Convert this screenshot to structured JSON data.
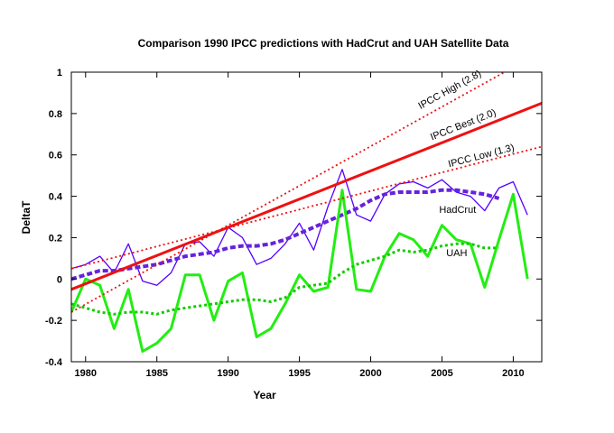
{
  "chart_data": {
    "type": "line",
    "title": "Comparison 1990 IPCC predictions with  HadCrut and UAH Satellite Data",
    "xlabel": "Year",
    "ylabel": "DeltaT",
    "xlim": [
      1979,
      2012
    ],
    "ylim": [
      -0.4,
      1.0
    ],
    "x_ticks": [
      1980,
      1985,
      1990,
      1995,
      2000,
      2005,
      2010
    ],
    "y_ticks": [
      -0.4,
      -0.2,
      0,
      0.2,
      0.4,
      0.6,
      0.8,
      1
    ],
    "y_tick_labels": [
      "-0.4",
      "-0.2",
      "0",
      "0.2",
      "0.4",
      "0.6",
      "0.8",
      "1"
    ],
    "grid": false,
    "colors": {
      "hadcrut": "#5500ff",
      "hadcrut_smooth": "#6622dd",
      "uah": "#22ee11",
      "uah_smooth": "#11cc00",
      "ipcc_best": "#ee1111",
      "ipcc_bounds": "#ee1111"
    },
    "series": [
      {
        "key": "hadcrut",
        "x": [
          1979,
          1980,
          1981,
          1982,
          1983,
          1984,
          1985,
          1986,
          1987,
          1988,
          1989,
          1990,
          1991,
          1992,
          1993,
          1994,
          1995,
          1996,
          1997,
          1998,
          1999,
          2000,
          2001,
          2002,
          2003,
          2004,
          2005,
          2006,
          2007,
          2008,
          2009,
          2010,
          2011
        ],
        "values": [
          0.05,
          0.07,
          0.11,
          0.03,
          0.17,
          -0.01,
          -0.03,
          0.03,
          0.17,
          0.18,
          0.11,
          0.25,
          0.2,
          0.07,
          0.1,
          0.17,
          0.27,
          0.14,
          0.35,
          0.53,
          0.31,
          0.28,
          0.41,
          0.46,
          0.47,
          0.44,
          0.48,
          0.42,
          0.4,
          0.33,
          0.44,
          0.47,
          0.31
        ]
      },
      {
        "key": "hadcrut_smooth",
        "x": [
          1979,
          1980,
          1981,
          1982,
          1983,
          1984,
          1985,
          1986,
          1987,
          1988,
          1989,
          1990,
          1991,
          1992,
          1993,
          1994,
          1995,
          1996,
          1997,
          1998,
          1999,
          2000,
          2001,
          2002,
          2003,
          2004,
          2005,
          2006,
          2007,
          2008,
          2009
        ],
        "values": [
          0.0,
          0.02,
          0.04,
          0.04,
          0.05,
          0.06,
          0.07,
          0.09,
          0.11,
          0.12,
          0.13,
          0.15,
          0.16,
          0.16,
          0.17,
          0.19,
          0.22,
          0.25,
          0.28,
          0.31,
          0.34,
          0.38,
          0.41,
          0.42,
          0.42,
          0.42,
          0.43,
          0.43,
          0.42,
          0.41,
          0.39
        ]
      },
      {
        "key": "uah",
        "x": [
          1979,
          1980,
          1981,
          1982,
          1983,
          1984,
          1985,
          1986,
          1987,
          1988,
          1989,
          1990,
          1991,
          1992,
          1993,
          1994,
          1995,
          1996,
          1997,
          1998,
          1999,
          2000,
          2001,
          2002,
          2003,
          2004,
          2005,
          2006,
          2007,
          2008,
          2009,
          2010,
          2011
        ],
        "values": [
          -0.16,
          0.0,
          -0.03,
          -0.24,
          -0.05,
          -0.35,
          -0.31,
          -0.24,
          0.02,
          0.02,
          -0.2,
          -0.01,
          0.03,
          -0.28,
          -0.24,
          -0.12,
          0.02,
          -0.06,
          -0.04,
          0.43,
          -0.05,
          -0.06,
          0.11,
          0.22,
          0.19,
          0.11,
          0.26,
          0.19,
          0.17,
          -0.04,
          0.19,
          0.41,
          0.0
        ]
      },
      {
        "key": "uah_smooth",
        "x": [
          1979,
          1980,
          1981,
          1982,
          1983,
          1984,
          1985,
          1986,
          1987,
          1988,
          1989,
          1990,
          1991,
          1992,
          1993,
          1994,
          1995,
          1996,
          1997,
          1998,
          1999,
          2000,
          2001,
          2002,
          2003,
          2004,
          2005,
          2006,
          2007,
          2008,
          2009
        ],
        "values": [
          -0.12,
          -0.14,
          -0.16,
          -0.17,
          -0.16,
          -0.16,
          -0.17,
          -0.15,
          -0.14,
          -0.13,
          -0.12,
          -0.11,
          -0.1,
          -0.1,
          -0.11,
          -0.09,
          -0.04,
          -0.03,
          -0.02,
          0.03,
          0.07,
          0.09,
          0.11,
          0.14,
          0.13,
          0.14,
          0.16,
          0.17,
          0.17,
          0.15,
          0.15
        ]
      },
      {
        "key": "ipcc_high",
        "x": [
          1979,
          2012
        ],
        "values": [
          -0.16,
          1.1
        ]
      },
      {
        "key": "ipcc_best",
        "x": [
          1979,
          2012
        ],
        "values": [
          -0.05,
          0.85
        ]
      },
      {
        "key": "ipcc_low",
        "x": [
          1979,
          2012
        ],
        "values": [
          0.05,
          0.64
        ]
      }
    ],
    "annotations": [
      {
        "key": "ipcc_high",
        "text": "IPCC High (2.8)",
        "x": 2003.5,
        "y": 0.82,
        "rotate": true
      },
      {
        "key": "ipcc_best",
        "text": "IPCC Best (2.0)",
        "x": 2004.3,
        "y": 0.67,
        "rotate": true
      },
      {
        "key": "ipcc_low",
        "text": "IPCC Low (1.3)",
        "x": 2005.5,
        "y": 0.54,
        "rotate": true
      },
      {
        "key": "hadcrut",
        "text": "HadCrut",
        "x": 2004.8,
        "y": 0.32,
        "rotate": false
      },
      {
        "key": "uah",
        "text": "UAH",
        "x": 2005.3,
        "y": 0.11,
        "rotate": false
      }
    ]
  }
}
